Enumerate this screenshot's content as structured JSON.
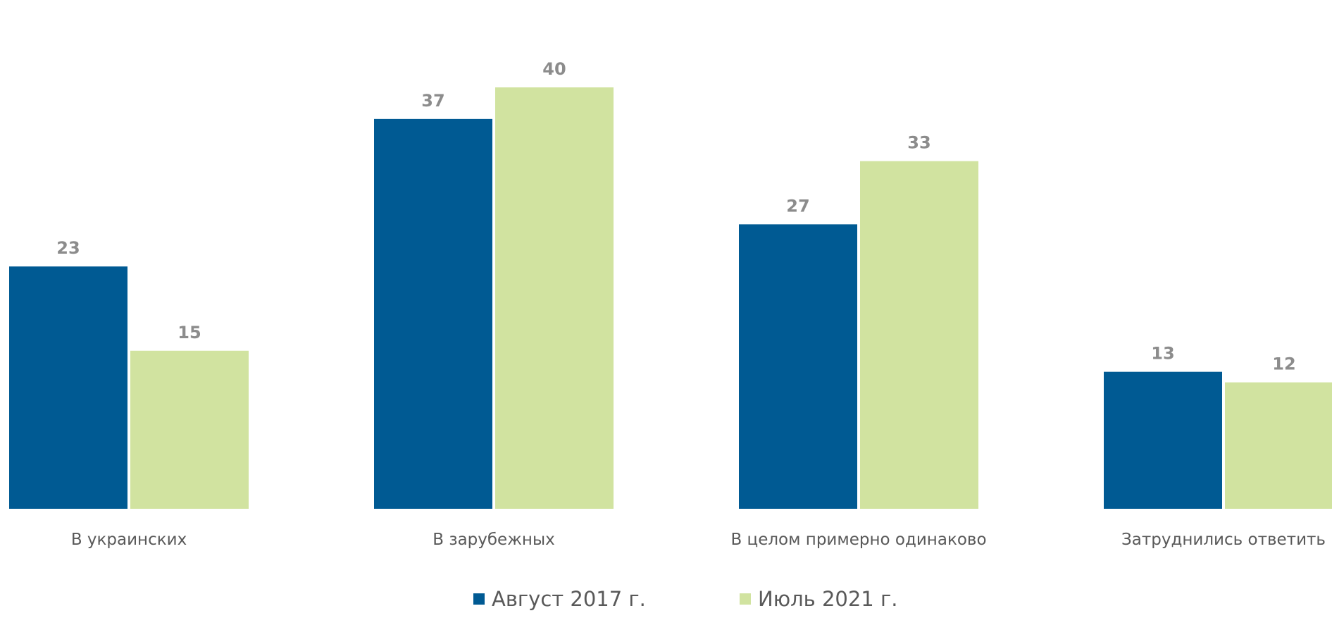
{
  "chart_data": {
    "type": "bar",
    "title": "",
    "xlabel": "",
    "ylabel": "",
    "categories": [
      "В украинских",
      "В зарубежных",
      "В целом примерно одинаково",
      "Затруднились ответить"
    ],
    "series": [
      {
        "name": "Август 2017 г.",
        "color": "#005a93",
        "values": [
          23,
          37,
          27,
          13
        ]
      },
      {
        "name": "Июль 2021 г.",
        "color": "#d1e3a0",
        "values": [
          15,
          40,
          33,
          12
        ]
      }
    ],
    "ylim": [
      0,
      43
    ],
    "grid": false,
    "data_labels": true,
    "legend_position": "bottom"
  }
}
